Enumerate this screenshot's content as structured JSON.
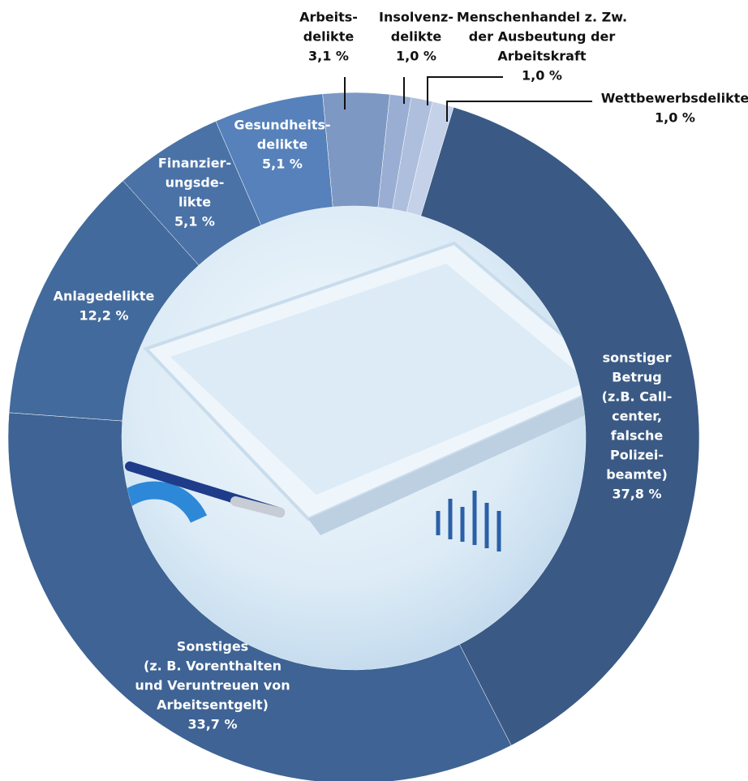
{
  "chart_data": {
    "type": "donut",
    "categories": [
      [
        "sonstiger",
        "Betrug",
        "(z.B. Call-",
        "center,",
        "falsche",
        "Polizei-",
        "beamte)"
      ],
      [
        "Sonstiges",
        "(z. B. Vorenthalten",
        "und Veruntreuen von",
        "Arbeitsentgelt)"
      ],
      [
        "Anlagedelikte"
      ],
      [
        "Finanzier-",
        "ungsde-",
        "likte"
      ],
      [
        "Gesundheits-",
        "delikte"
      ],
      [
        "Arbeits-",
        "delikte"
      ],
      [
        "Insolvenz-",
        "delikte"
      ],
      [
        "Menschenhandel z. Zw.",
        "der Ausbeutung der",
        "Arbeitskraft"
      ],
      [
        "Wettbewerbsdelikte"
      ]
    ],
    "values": [
      37.8,
      33.7,
      12.2,
      5.1,
      5.1,
      3.1,
      1.0,
      1.0,
      1.0
    ],
    "value_labels": [
      "37,8 %",
      "33,7 %",
      "12,2 %",
      "5,1 %",
      "5,1 %",
      "3,1 %",
      "1,0 %",
      "1,0 %",
      "1,0 %"
    ],
    "colors": [
      "#3a5a85",
      "#3e6394",
      "#436a9c",
      "#4a72a6",
      "#5681bb",
      "#7e98c4",
      "#9aaed3",
      "#aebfdd",
      "#c5d1e8"
    ]
  }
}
